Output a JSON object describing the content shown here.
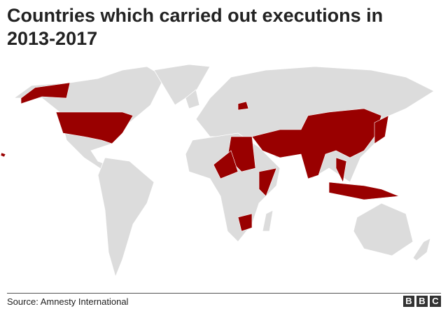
{
  "header": {
    "title": "Countries which carried out executions in 2013-2017"
  },
  "footer": {
    "source": "Source: Amnesty International",
    "logo": [
      "B",
      "B",
      "C"
    ]
  }
}
